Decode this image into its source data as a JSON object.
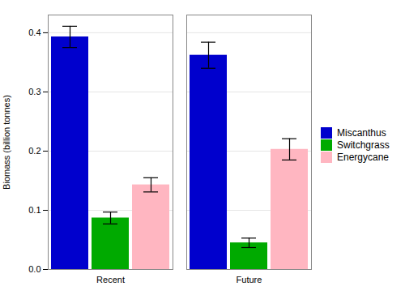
{
  "chart_data": {
    "type": "bar",
    "categories": [
      "Recent",
      "Future"
    ],
    "series": [
      {
        "name": "Miscanthus",
        "color": "#0000CD",
        "values": [
          0.393,
          0.362
        ],
        "errors": [
          0.018,
          0.022
        ]
      },
      {
        "name": "Switchgrass",
        "color": "#00AA00",
        "values": [
          0.087,
          0.045
        ],
        "errors": [
          0.01,
          0.008
        ]
      },
      {
        "name": "Energycane",
        "color": "#FFB6C1",
        "values": [
          0.143,
          0.203
        ],
        "errors": [
          0.012,
          0.018
        ]
      }
    ],
    "ylabel": "Biomass (billion tonnes)",
    "ylim": [
      0,
      0.43
    ],
    "yticks": [
      {
        "value": 0,
        "label": "0.0"
      },
      0.1,
      0.2,
      0.3,
      0.4
    ],
    "grid": true,
    "legend": "right"
  }
}
